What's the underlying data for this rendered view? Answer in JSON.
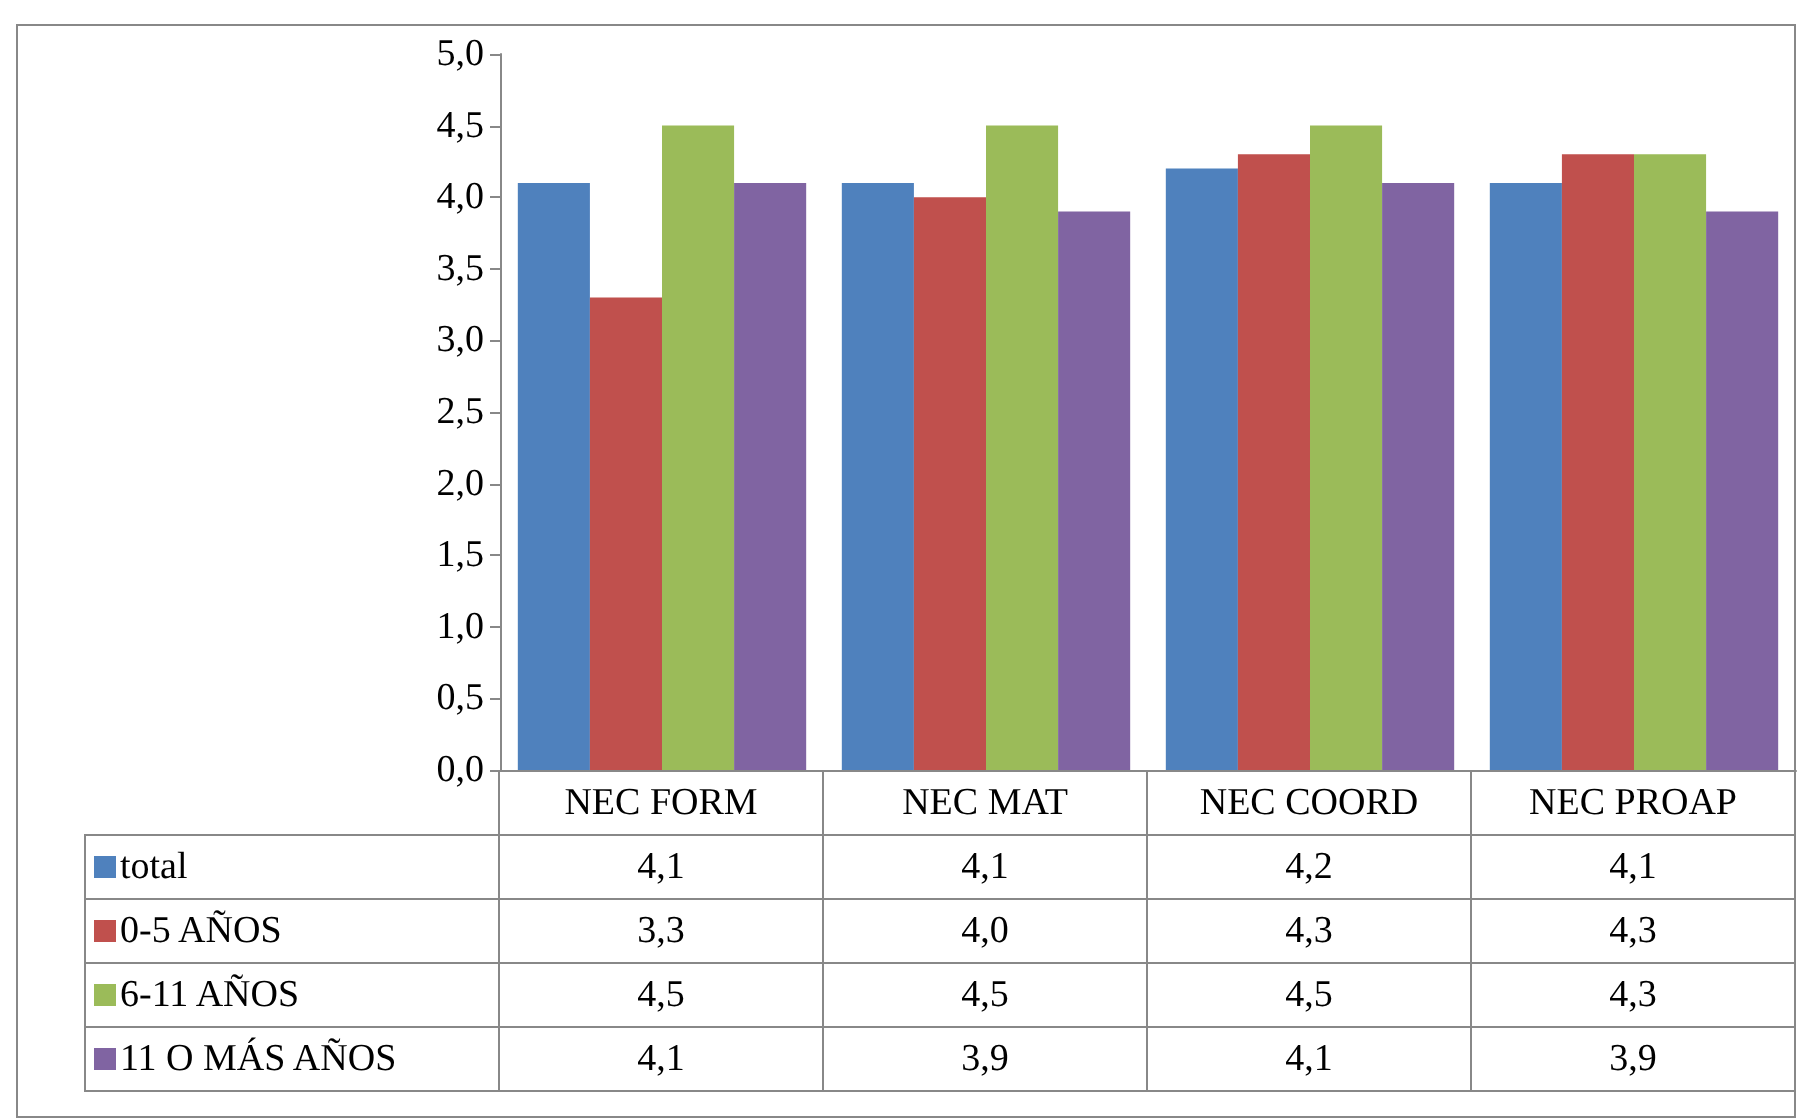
{
  "chart_data": {
    "type": "bar",
    "categories": [
      "NEC FORM",
      "NEC MAT",
      "NEC COORD",
      "NEC PROAP"
    ],
    "series": [
      {
        "name": "total",
        "color": "#4f81bd",
        "values": [
          4.1,
          4.1,
          4.2,
          4.1
        ],
        "value_labels": [
          "4,1",
          "4,1",
          "4,2",
          "4,1"
        ]
      },
      {
        "name": "0-5 AÑOS",
        "color": "#c0504d",
        "values": [
          3.3,
          4.0,
          4.3,
          4.3
        ],
        "value_labels": [
          "3,3",
          "4,0",
          "4,3",
          "4,3"
        ]
      },
      {
        "name": "6-11 AÑOS",
        "color": "#9bbb59",
        "values": [
          4.5,
          4.5,
          4.5,
          4.3
        ],
        "value_labels": [
          "4,5",
          "4,5",
          "4,5",
          "4,3"
        ]
      },
      {
        "name": "11 O MÁS AÑOS",
        "color": "#8064a2",
        "values": [
          4.1,
          3.9,
          4.1,
          3.9
        ],
        "value_labels": [
          "4,1",
          "3,9",
          "4,1",
          "3,9"
        ]
      }
    ],
    "ylim": [
      0,
      5
    ],
    "yticks": [
      {
        "value": 0,
        "label": "0,0"
      },
      {
        "value": 0.5,
        "label": "0,5"
      },
      {
        "value": 1,
        "label": "1,0"
      },
      {
        "value": 1.5,
        "label": "1,5"
      },
      {
        "value": 2,
        "label": "2,0"
      },
      {
        "value": 2.5,
        "label": "2,5"
      },
      {
        "value": 3,
        "label": "3,0"
      },
      {
        "value": 3.5,
        "label": "3,5"
      },
      {
        "value": 4,
        "label": "4,0"
      },
      {
        "value": 4.5,
        "label": "4,5"
      },
      {
        "value": 5,
        "label": "5,0"
      }
    ],
    "legend": "bottom left"
  }
}
